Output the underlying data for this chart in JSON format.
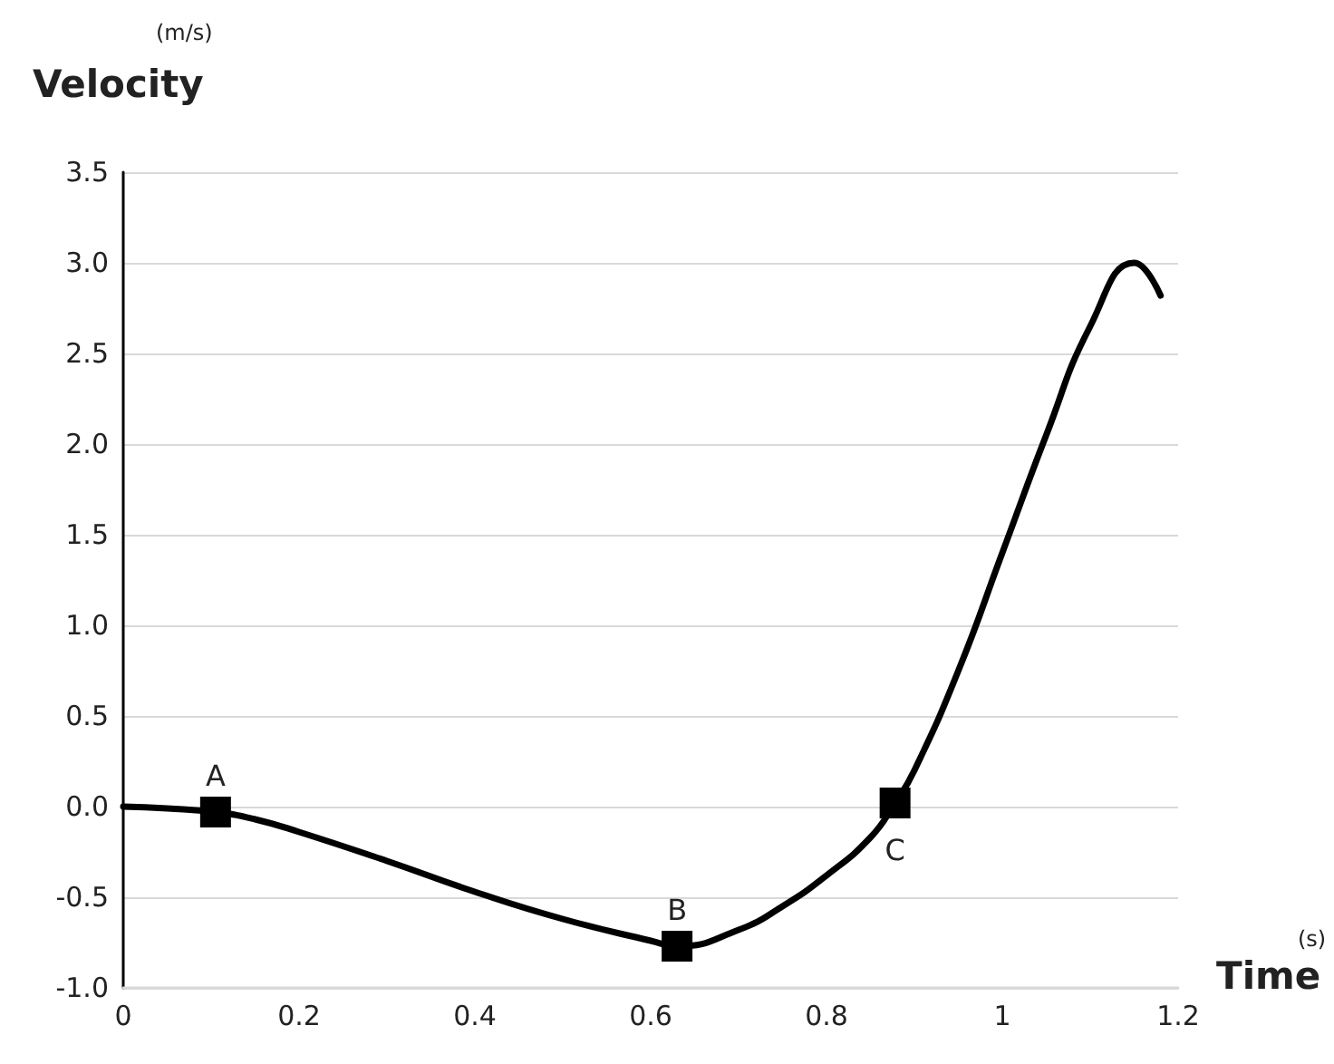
{
  "chart_data": {
    "type": "line",
    "xlabel": "Time",
    "ylabel": "Velocity",
    "annotations": [
      "(m/s)",
      "(s)",
      {
        "text": "A",
        "x": 0.105,
        "y": -0.03
      },
      {
        "text": "B",
        "x": 0.63,
        "y": -0.77
      },
      {
        "text": "C",
        "x": 0.878,
        "y": 0.02
      }
    ],
    "series": [
      {
        "color": "#000000",
        "marker": "none",
        "x": [
          0,
          0.05,
          0.105,
          0.15,
          0.2,
          0.3,
          0.4,
          0.5,
          0.6,
          0.63,
          0.7,
          0.75,
          0.8,
          0.85,
          0.878,
          0.9,
          0.95,
          1.0,
          1.05,
          1.1,
          1.15,
          1.18
        ],
        "values": [
          0,
          -0.01,
          -0.03,
          -0.07,
          -0.14,
          -0.3,
          -0.47,
          -0.62,
          -0.74,
          -0.77,
          -0.68,
          -0.55,
          -0.38,
          -0.17,
          0.02,
          0.2,
          0.75,
          1.4,
          2.05,
          2.65,
          3.0,
          2.82
        ]
      },
      {
        "type": "scatter",
        "color": "#000000",
        "marker": "square",
        "x": [
          0.105,
          0.63,
          0.878
        ],
        "values": [
          -0.03,
          -0.77,
          0.02
        ]
      }
    ],
    "xlim": [
      0,
      1.2
    ],
    "xticks": [
      0,
      0.2,
      0.4,
      0.6,
      0.8,
      {
        "value": 1,
        "label": "1"
      },
      1.2
    ],
    "ylim": [
      -1,
      3.5
    ],
    "yticks": [
      {
        "value": -1,
        "label": "-1.0"
      },
      -0.5,
      {
        "value": 0,
        "label": "0.0"
      },
      0.5,
      {
        "value": 1,
        "label": "1.0"
      },
      1.5,
      {
        "value": 2,
        "label": "2.0"
      },
      2.5,
      {
        "value": 3,
        "label": "3.0"
      },
      3.5
    ],
    "grid": "y"
  }
}
